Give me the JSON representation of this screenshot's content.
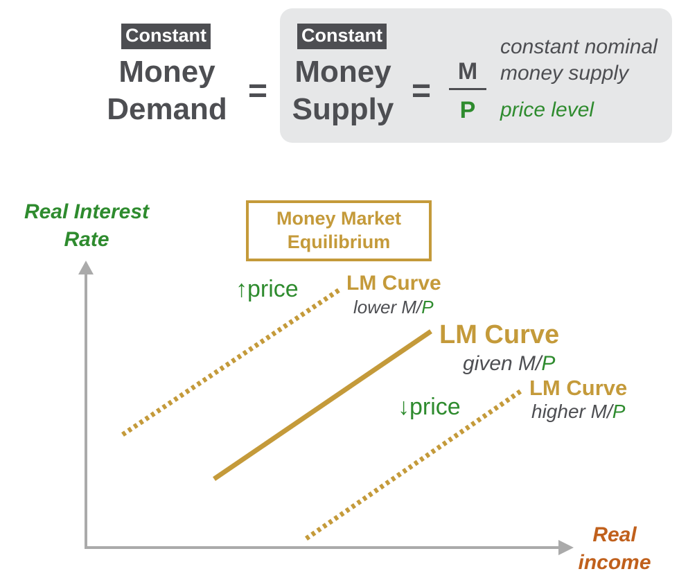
{
  "equation": {
    "left_badge": "Constant",
    "left_line1": "Money",
    "left_line2": "Demand",
    "equals": "=",
    "right_badge": "Constant",
    "right_line1": "Money",
    "right_line2": "Supply",
    "equals2": "=",
    "numerator": "M",
    "denominator": "P",
    "numerator_note_line1": "constant nominal",
    "numerator_note_line2": "money supply",
    "denominator_note": "price level"
  },
  "graph": {
    "y_axis_label_line1": "Real Interest",
    "y_axis_label_line2": "Rate",
    "x_axis_label_line1": "Real",
    "x_axis_label_line2": "income",
    "box_line1": "Money Market",
    "box_line2": "Equilibrium",
    "curves": [
      {
        "title": "LM Curve",
        "sub_prefix": "lower M/",
        "sub_suffix": "P",
        "style": "dotted",
        "shift": "↑price"
      },
      {
        "title": "LM Curve",
        "sub_prefix": "given M/",
        "sub_suffix": "P",
        "style": "solid"
      },
      {
        "title": "LM Curve",
        "sub_prefix": "higher M/",
        "sub_suffix": "P",
        "style": "dotted",
        "shift": "↓price"
      }
    ]
  },
  "colors": {
    "dark_gray": "#4d4e52",
    "green": "#2e8b2e",
    "gold": "#c49a3a",
    "rust": "#c0601c",
    "axis": "#aaaaaa",
    "panel": "#e6e7e8"
  }
}
